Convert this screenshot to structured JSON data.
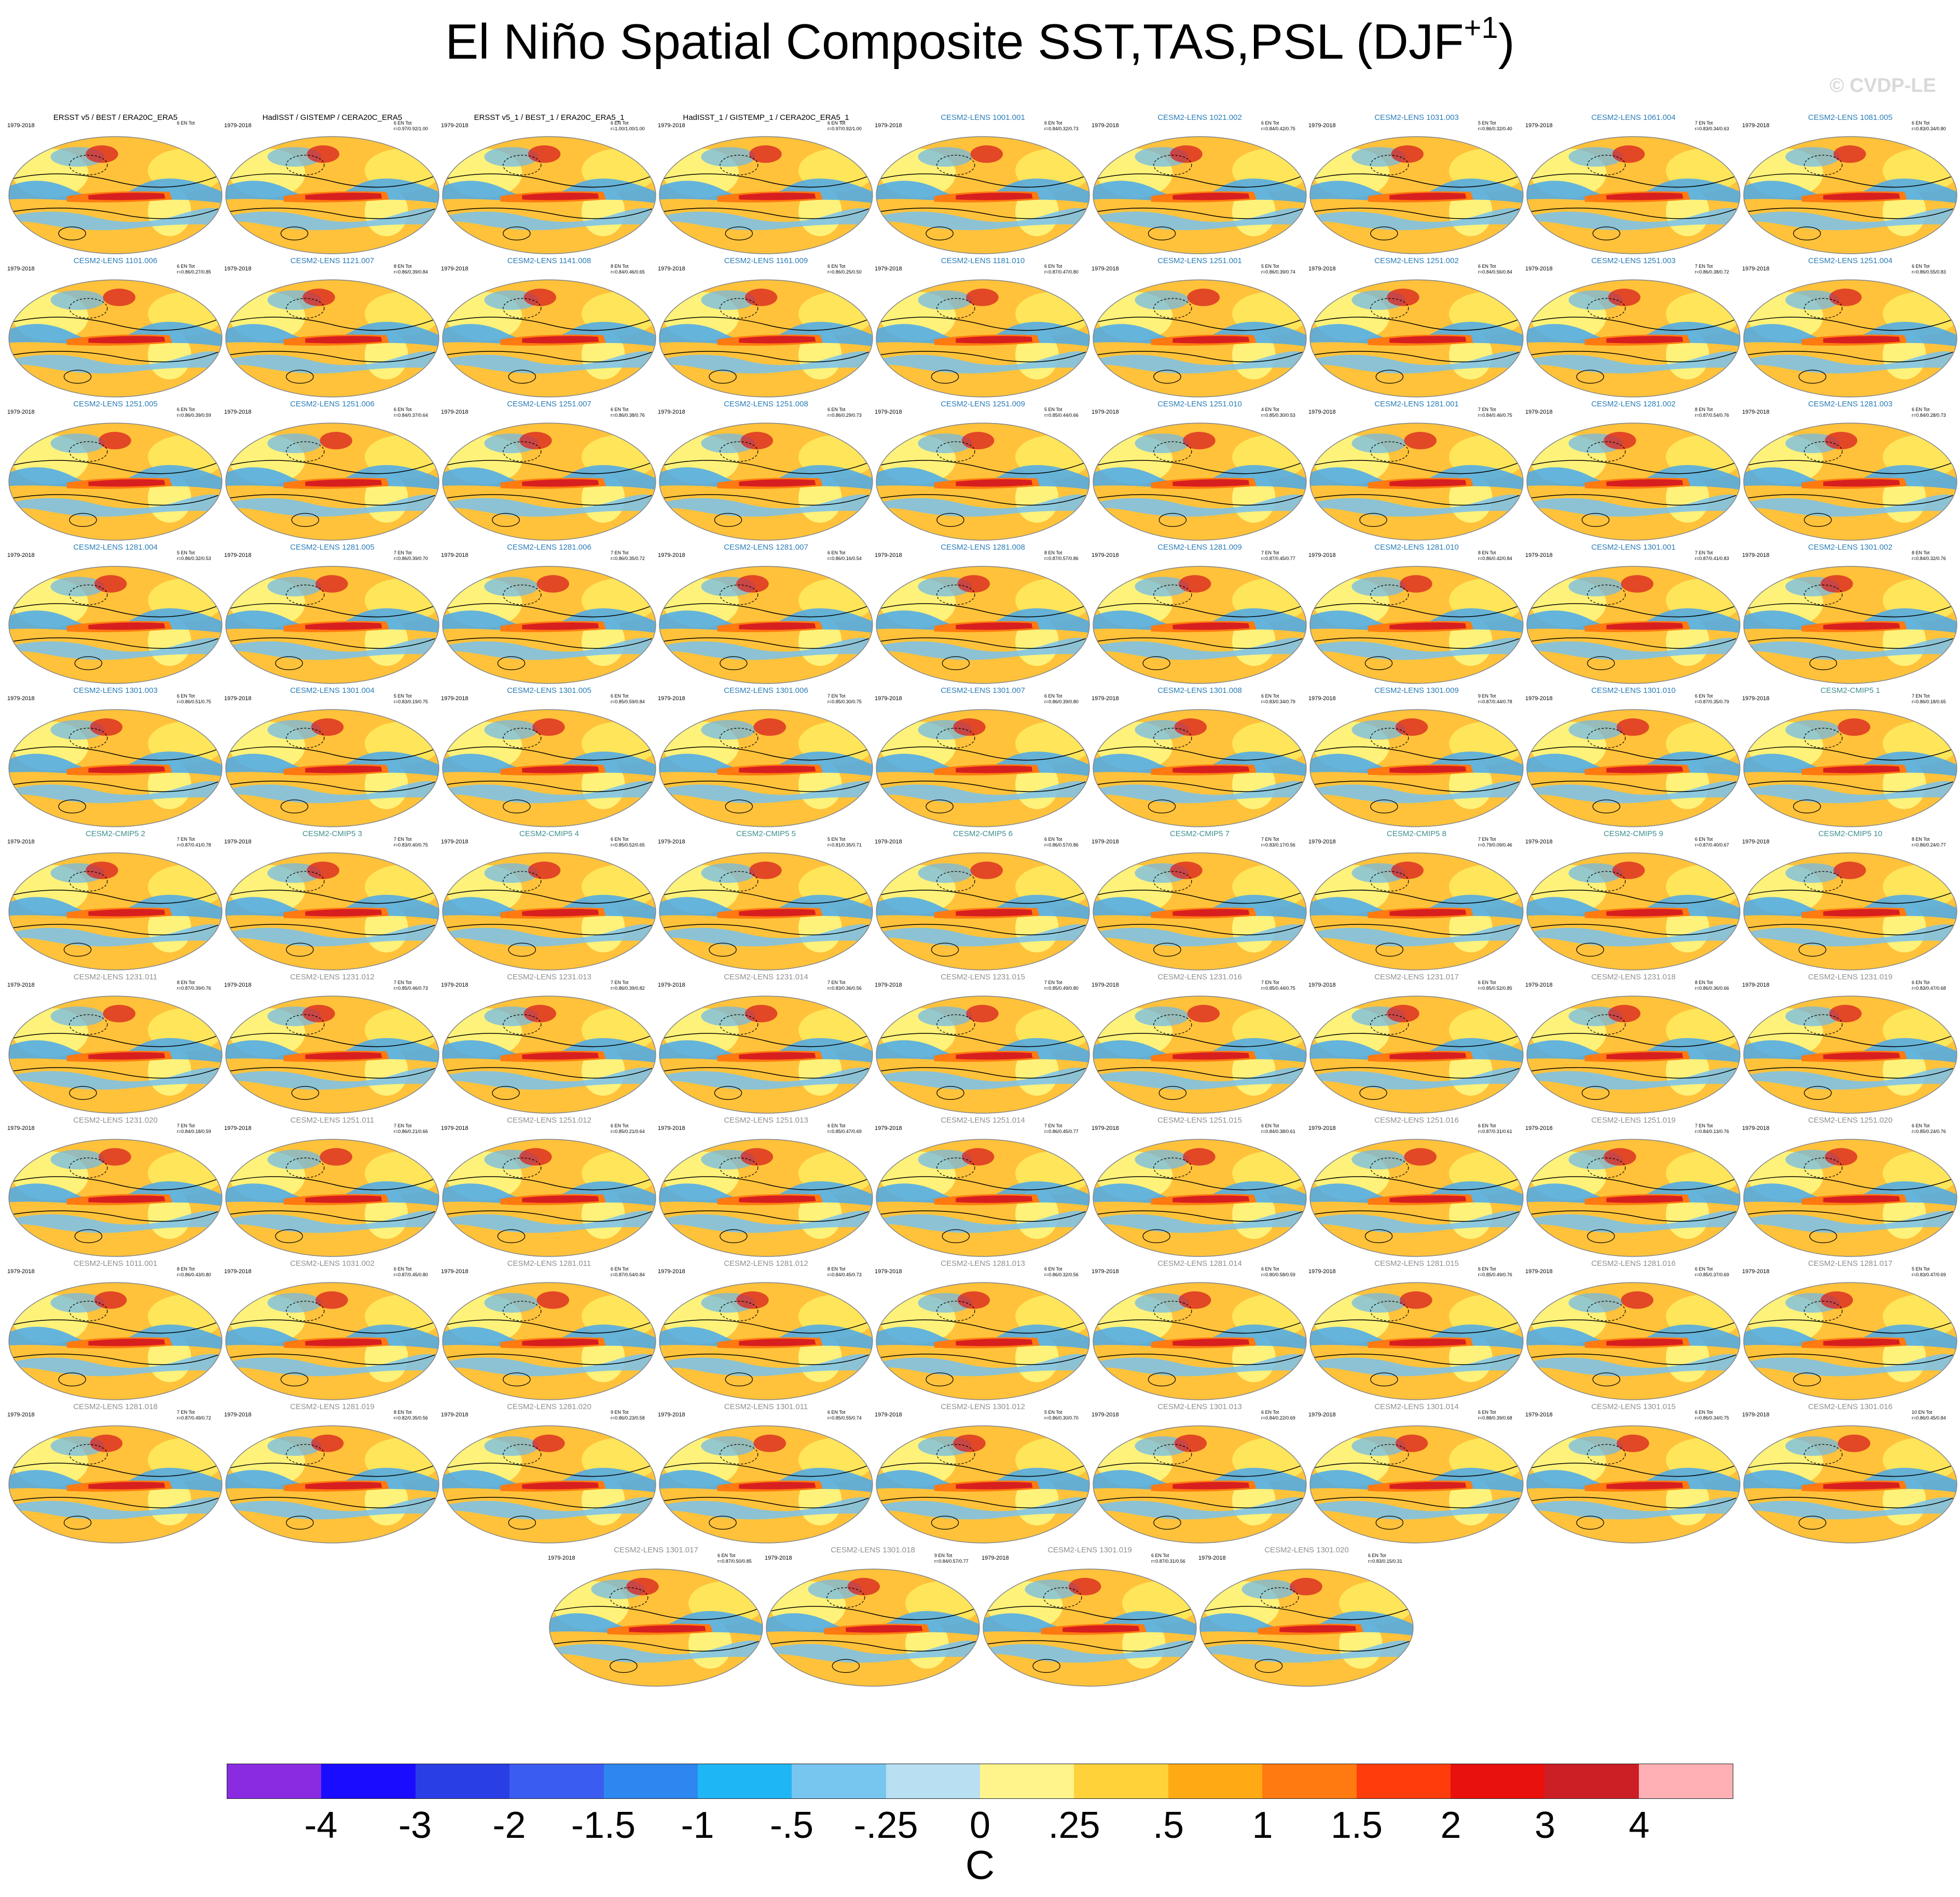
{
  "title": {
    "text": "El Niño Spatial Composite SST,TAS,PSL (DJF",
    "superscript": "+1",
    "close": ")"
  },
  "watermark": "© CVDP-LE",
  "colors": {
    "observation_title": "#000000",
    "cesm2_lens_title": "#2a7db8",
    "cesm2_cmip5_title": "#3f8f8f",
    "late_member_title": "#8f8f8f",
    "ocean_red": "#d81f1f",
    "ocean_blue": "#4aa9ec",
    "land_yellow": "#fff27a",
    "land_orange": "#ffb52a"
  },
  "panels": [
    {
      "title": "ERSST v5 / BEST / ERA20C_ERA5",
      "group": "obs",
      "period": "1979-2018",
      "stats": "6 EN Tot"
    },
    {
      "title": "HadISST / GISTEMP / CERA20C_ERA5",
      "group": "obs",
      "period": "1979-2018",
      "stats": "6 EN Tot\nr=0.97/0.92/1.00"
    },
    {
      "title": "ERSST v5_1 / BEST_1 / ERA20C_ERA5_1",
      "group": "obs",
      "period": "1979-2018",
      "stats": "6 EN Tot\nr=1.00/1.00/1.00"
    },
    {
      "title": "HadISST_1 / GISTEMP_1 / CERA20C_ERA5_1",
      "group": "obs",
      "period": "1979-2018",
      "stats": "6 EN Tot\nr=0.97/0.92/1.00"
    },
    {
      "title": "CESM2-LENS 1001.001",
      "group": "lens",
      "period": "1979-2018",
      "stats": "6 EN Tot\nr=0.84/0.32/0.73"
    },
    {
      "title": "CESM2-LENS 1021.002",
      "group": "lens",
      "period": "1979-2018",
      "stats": "6 EN Tot\nr=0.84/0.42/0.75"
    },
    {
      "title": "CESM2-LENS 1031.003",
      "group": "lens",
      "period": "1979-2018",
      "stats": "5 EN Tot\nr=0.86/0.32/0.40"
    },
    {
      "title": "CESM2-LENS 1061.004",
      "group": "lens",
      "period": "1979-2018",
      "stats": "7 EN Tot\nr=0.83/0.34/0.63"
    },
    {
      "title": "CESM2-LENS 1081.005",
      "group": "lens",
      "period": "1979-2018",
      "stats": "6 EN Tot\nr=0.83/0.34/0.80"
    },
    {
      "title": "CESM2-LENS 1101.006",
      "group": "lens",
      "period": "1979-2018",
      "stats": "6 EN Tot\nr=0.86/0.27/0.85"
    },
    {
      "title": "CESM2-LENS 1121.007",
      "group": "lens",
      "period": "1979-2018",
      "stats": "8 EN Tot\nr=0.86/0.39/0.84"
    },
    {
      "title": "CESM2-LENS 1141.008",
      "group": "lens",
      "period": "1979-2018",
      "stats": "8 EN Tot\nr=0.84/0.46/0.65"
    },
    {
      "title": "CESM2-LENS 1161.009",
      "group": "lens",
      "period": "1979-2018",
      "stats": "6 EN Tot\nr=0.86/0.25/0.50"
    },
    {
      "title": "CESM2-LENS 1181.010",
      "group": "lens",
      "period": "1979-2018",
      "stats": "6 EN Tot\nr=0.87/0.47/0.80"
    },
    {
      "title": "CESM2-LENS 1251.001",
      "group": "lens",
      "period": "1979-2018",
      "stats": "5 EN Tot\nr=0.86/0.39/0.74"
    },
    {
      "title": "CESM2-LENS 1251.002",
      "group": "lens",
      "period": "1979-2018",
      "stats": "6 EN Tot\nr=0.84/0.56/0.84"
    },
    {
      "title": "CESM2-LENS 1251.003",
      "group": "lens",
      "period": "1979-2018",
      "stats": "7 EN Tot\nr=0.86/0.38/0.72"
    },
    {
      "title": "CESM2-LENS 1251.004",
      "group": "lens",
      "period": "1979-2018",
      "stats": "6 EN Tot\nr=0.86/0.55/0.83"
    },
    {
      "title": "CESM2-LENS 1251.005",
      "group": "lens",
      "period": "1979-2018",
      "stats": "6 EN Tot\nr=0.86/0.39/0.59"
    },
    {
      "title": "CESM2-LENS 1251.006",
      "group": "lens",
      "period": "1979-2018",
      "stats": "6 EN Tot\nr=0.84/0.37/0.64"
    },
    {
      "title": "CESM2-LENS 1251.007",
      "group": "lens",
      "period": "1979-2018",
      "stats": "6 EN Tot\nr=0.86/0.38/0.76"
    },
    {
      "title": "CESM2-LENS 1251.008",
      "group": "lens",
      "period": "1979-2018",
      "stats": "6 EN Tot\nr=0.86/0.29/0.73"
    },
    {
      "title": "CESM2-LENS 1251.009",
      "group": "lens",
      "period": "1979-2018",
      "stats": "5 EN Tot\nr=0.85/0.44/0.66"
    },
    {
      "title": "CESM2-LENS 1251.010",
      "group": "lens",
      "period": "1979-2018",
      "stats": "4 EN Tot\nr=0.85/0.30/0.53"
    },
    {
      "title": "CESM2-LENS 1281.001",
      "group": "lens",
      "period": "1979-2018",
      "stats": "7 EN Tot\nr=0.84/0.46/0.75"
    },
    {
      "title": "CESM2-LENS 1281.002",
      "group": "lens",
      "period": "1979-2018",
      "stats": "8 EN Tot\nr=0.87/0.54/0.76"
    },
    {
      "title": "CESM2-LENS 1281.003",
      "group": "lens",
      "period": "1979-2018",
      "stats": "6 EN Tot\nr=0.84/0.28/0.73"
    },
    {
      "title": "CESM2-LENS 1281.004",
      "group": "lens",
      "period": "1979-2018",
      "stats": "5 EN Tot\nr=0.86/0.32/0.53"
    },
    {
      "title": "CESM2-LENS 1281.005",
      "group": "lens",
      "period": "1979-2018",
      "stats": "7 EN Tot\nr=0.86/0.39/0.70"
    },
    {
      "title": "CESM2-LENS 1281.006",
      "group": "lens",
      "period": "1979-2018",
      "stats": "7 EN Tot\nr=0.86/0.35/0.72"
    },
    {
      "title": "CESM2-LENS 1281.007",
      "group": "lens",
      "period": "1979-2018",
      "stats": "6 EN Tot\nr=0.86/0.16/0.54"
    },
    {
      "title": "CESM2-LENS 1281.008",
      "group": "lens",
      "period": "1979-2018",
      "stats": "8 EN Tot\nr=0.87/0.57/0.86"
    },
    {
      "title": "CESM2-LENS 1281.009",
      "group": "lens",
      "period": "1979-2018",
      "stats": "7 EN Tot\nr=0.87/0.45/0.77"
    },
    {
      "title": "CESM2-LENS 1281.010",
      "group": "lens",
      "period": "1979-2018",
      "stats": "8 EN Tot\nr=0.86/0.42/0.84"
    },
    {
      "title": "CESM2-LENS 1301.001",
      "group": "lens",
      "period": "1979-2018",
      "stats": "7 EN Tot\nr=0.87/0.41/0.83"
    },
    {
      "title": "CESM2-LENS 1301.002",
      "group": "lens",
      "period": "1979-2018",
      "stats": "8 EN Tot\nr=0.84/0.32/0.76"
    },
    {
      "title": "CESM2-LENS 1301.003",
      "group": "lens",
      "period": "1979-2018",
      "stats": "6 EN Tot\nr=0.86/0.51/0.75"
    },
    {
      "title": "CESM2-LENS 1301.004",
      "group": "lens",
      "period": "1979-2018",
      "stats": "5 EN Tot\nr=0.83/0.19/0.75"
    },
    {
      "title": "CESM2-LENS 1301.005",
      "group": "lens",
      "period": "1979-2018",
      "stats": "6 EN Tot\nr=0.85/0.59/0.84"
    },
    {
      "title": "CESM2-LENS 1301.006",
      "group": "lens",
      "period": "1979-2018",
      "stats": "7 EN Tot\nr=0.85/0.30/0.75"
    },
    {
      "title": "CESM2-LENS 1301.007",
      "group": "lens",
      "period": "1979-2018",
      "stats": "6 EN Tot\nr=0.86/0.39/0.80"
    },
    {
      "title": "CESM2-LENS 1301.008",
      "group": "lens",
      "period": "1979-2018",
      "stats": "6 EN Tot\nr=0.83/0.34/0.79"
    },
    {
      "title": "CESM2-LENS 1301.009",
      "group": "lens",
      "period": "1979-2018",
      "stats": "9 EN Tot\nr=0.87/0.44/0.78"
    },
    {
      "title": "CESM2-LENS 1301.010",
      "group": "lens",
      "period": "1979-2018",
      "stats": "6 EN Tot\nr=0.87/0.35/0.79"
    },
    {
      "title": "CESM2-CMIP5 1",
      "group": "cmip5",
      "period": "1979-2018",
      "stats": "7 EN Tot\nr=0.86/0.18/0.65"
    },
    {
      "title": "CESM2-CMIP5 2",
      "group": "cmip5",
      "period": "1979-2018",
      "stats": "7 EN Tot\nr=0.87/0.41/0.78"
    },
    {
      "title": "CESM2-CMIP5 3",
      "group": "cmip5",
      "period": "1979-2018",
      "stats": "7 EN Tot\nr=0.83/0.40/0.75"
    },
    {
      "title": "CESM2-CMIP5 4",
      "group": "cmip5",
      "period": "1979-2018",
      "stats": "6 EN Tot\nr=0.85/0.52/0.65"
    },
    {
      "title": "CESM2-CMIP5 5",
      "group": "cmip5",
      "period": "1979-2018",
      "stats": "5 EN Tot\nr=0.81/0.35/0.71"
    },
    {
      "title": "CESM2-CMIP5 6",
      "group": "cmip5",
      "period": "1979-2018",
      "stats": "6 EN Tot\nr=0.86/0.57/0.86"
    },
    {
      "title": "CESM2-CMIP5 7",
      "group": "cmip5",
      "period": "1979-2018",
      "stats": "7 EN Tot\nr=0.83/0.17/0.56"
    },
    {
      "title": "CESM2-CMIP5 8",
      "group": "cmip5",
      "period": "1979-2018",
      "stats": "7 EN Tot\nr=0.79/0.09/0.46"
    },
    {
      "title": "CESM2-CMIP5 9",
      "group": "cmip5",
      "period": "1979-2018",
      "stats": "6 EN Tot\nr=0.87/0.40/0.67"
    },
    {
      "title": "CESM2-CMIP5 10",
      "group": "cmip5",
      "period": "1979-2018",
      "stats": "8 EN Tot\nr=0.86/0.24/0.77"
    },
    {
      "title": "CESM2-LENS 1231.011",
      "group": "late",
      "period": "1979-2018",
      "stats": "8 EN Tot\nr=0.87/0.39/0.76"
    },
    {
      "title": "CESM2-LENS 1231.012",
      "group": "late",
      "period": "1979-2018",
      "stats": "7 EN Tot\nr=0.85/0.46/0.73"
    },
    {
      "title": "CESM2-LENS 1231.013",
      "group": "late",
      "period": "1979-2018",
      "stats": "7 EN Tot\nr=0.86/0.39/0.82"
    },
    {
      "title": "CESM2-LENS 1231.014",
      "group": "late",
      "period": "1979-2018",
      "stats": "7 EN Tot\nr=0.83/0.36/0.56"
    },
    {
      "title": "CESM2-LENS 1231.015",
      "group": "late",
      "period": "1979-2018",
      "stats": "7 EN Tot\nr=0.85/0.49/0.80"
    },
    {
      "title": "CESM2-LENS 1231.016",
      "group": "late",
      "period": "1979-2018",
      "stats": "7 EN Tot\nr=0.85/0.44/0.75"
    },
    {
      "title": "CESM2-LENS 1231.017",
      "group": "late",
      "period": "1979-2018",
      "stats": "6 EN Tot\nr=0.85/0.52/0.85"
    },
    {
      "title": "CESM2-LENS 1231.018",
      "group": "late",
      "period": "1979-2018",
      "stats": "8 EN Tot\nr=0.86/0.36/0.66"
    },
    {
      "title": "CESM2-LENS 1231.019",
      "group": "late",
      "period": "1979-2018",
      "stats": "6 EN Tot\nr=0.83/0.47/0.68"
    },
    {
      "title": "CESM2-LENS 1231.020",
      "group": "late",
      "period": "1979-2018",
      "stats": "7 EN Tot\nr=0.84/0.18/0.59"
    },
    {
      "title": "CESM2-LENS 1251.011",
      "group": "late",
      "period": "1979-2018",
      "stats": "7 EN Tot\nr=0.86/0.21/0.66"
    },
    {
      "title": "CESM2-LENS 1251.012",
      "group": "late",
      "period": "1979-2018",
      "stats": "6 EN Tot\nr=0.85/0.21/0.64"
    },
    {
      "title": "CESM2-LENS 1251.013",
      "group": "late",
      "period": "1979-2018",
      "stats": "6 EN Tot\nr=0.85/0.47/0.69"
    },
    {
      "title": "CESM2-LENS 1251.014",
      "group": "late",
      "period": "1979-2018",
      "stats": "7 EN Tot\nr=0.86/0.45/0.77"
    },
    {
      "title": "CESM2-LENS 1251.015",
      "group": "late",
      "period": "1979-2018",
      "stats": "6 EN Tot\nr=0.84/0.38/0.61"
    },
    {
      "title": "CESM2-LENS 1251.016",
      "group": "late",
      "period": "1979-2018",
      "stats": "6 EN Tot\nr=0.87/0.31/0.61"
    },
    {
      "title": "CESM2-LENS 1251.019",
      "group": "late",
      "period": "1979-2018",
      "stats": "7 EN Tot\nr=0.84/0.13/0.76"
    },
    {
      "title": "CESM2-LENS 1251.020",
      "group": "late",
      "period": "1979-2018",
      "stats": "6 EN Tot\nr=0.85/0.24/0.76"
    },
    {
      "title": "CESM2-LENS 1011.001",
      "group": "late",
      "period": "1979-2018",
      "stats": "8 EN Tot\nr=0.86/0.43/0.80"
    },
    {
      "title": "CESM2-LENS 1031.002",
      "group": "late",
      "period": "1979-2018",
      "stats": "6 EN Tot\nr=0.87/0.45/0.80"
    },
    {
      "title": "CESM2-LENS 1281.011",
      "group": "late",
      "period": "1979-2018",
      "stats": "6 EN Tot\nr=0.87/0.54/0.84"
    },
    {
      "title": "CESM2-LENS 1281.012",
      "group": "late",
      "period": "1979-2018",
      "stats": "8 EN Tot\nr=0.84/0.45/0.73"
    },
    {
      "title": "CESM2-LENS 1281.013",
      "group": "late",
      "period": "1979-2018",
      "stats": "6 EN Tot\nr=0.86/0.32/0.56"
    },
    {
      "title": "CESM2-LENS 1281.014",
      "group": "late",
      "period": "1979-2018",
      "stats": "6 EN Tot\nr=0.80/0.58/0.59"
    },
    {
      "title": "CESM2-LENS 1281.015",
      "group": "late",
      "period": "1979-2018",
      "stats": "6 EN Tot\nr=0.85/0.49/0.76"
    },
    {
      "title": "CESM2-LENS 1281.016",
      "group": "late",
      "period": "1979-2018",
      "stats": "6 EN Tot\nr=0.85/0.37/0.69"
    },
    {
      "title": "CESM2-LENS 1281.017",
      "group": "late",
      "period": "1979-2018",
      "stats": "5 EN Tot\nr=0.83/0.47/0.69"
    },
    {
      "title": "CESM2-LENS 1281.018",
      "group": "late",
      "period": "1979-2018",
      "stats": "7 EN Tot\nr=0.87/0.49/0.72"
    },
    {
      "title": "CESM2-LENS 1281.019",
      "group": "late",
      "period": "1979-2018",
      "stats": "8 EN Tot\nr=0.82/0.35/0.56"
    },
    {
      "title": "CESM2-LENS 1281.020",
      "group": "late",
      "period": "1979-2018",
      "stats": "9 EN Tot\nr=0.86/0.23/0.58"
    },
    {
      "title": "CESM2-LENS 1301.011",
      "group": "late",
      "period": "1979-2018",
      "stats": "6 EN Tot\nr=0.85/0.55/0.74"
    },
    {
      "title": "CESM2-LENS 1301.012",
      "group": "late",
      "period": "1979-2018",
      "stats": "5 EN Tot\nr=0.86/0.30/0.70"
    },
    {
      "title": "CESM2-LENS 1301.013",
      "group": "late",
      "period": "1979-2018",
      "stats": "6 EN Tot\nr=0.84/0.22/0.69"
    },
    {
      "title": "CESM2-LENS 1301.014",
      "group": "late",
      "period": "1979-2018",
      "stats": "6 EN Tot\nr=0.88/0.39/0.68"
    },
    {
      "title": "CESM2-LENS 1301.015",
      "group": "late",
      "period": "1979-2018",
      "stats": "6 EN Tot\nr=0.86/0.34/0.75"
    },
    {
      "title": "CESM2-LENS 1301.016",
      "group": "late",
      "period": "1979-2018",
      "stats": "10 EN Tot\nr=0.86/0.45/0.84"
    },
    {
      "title": "CESM2-LENS 1301.017",
      "group": "late",
      "period": "1979-2018",
      "stats": "6 EN Tot\nr=0.87/0.50/0.85"
    },
    {
      "title": "CESM2-LENS 1301.018",
      "group": "late",
      "period": "1979-2018",
      "stats": "9 EN Tot\nr=0.84/0.57/0.77"
    },
    {
      "title": "CESM2-LENS 1301.019",
      "group": "late",
      "period": "1979-2018",
      "stats": "6 EN Tot\nr=0.87/0.31/0.56"
    },
    {
      "title": "CESM2-LENS 1301.020",
      "group": "late",
      "period": "1979-2018",
      "stats": "6 EN Tot\nr=0.83/0.15/0.31"
    }
  ],
  "colorbar": {
    "colors": [
      "#8a2be2",
      "#1a0dff",
      "#2a3ee6",
      "#3b5cf0",
      "#2e86f0",
      "#1fb6f5",
      "#76c6f0",
      "#b9dff2",
      "#fff48c",
      "#ffd23a",
      "#ffaa14",
      "#ff7a10",
      "#ff3c0c",
      "#e8110d",
      "#cc1e25",
      "#ffb0b4"
    ],
    "labels": [
      "-4",
      "-3",
      "-2",
      "-1.5",
      "-1",
      "-.5",
      "-.25",
      "0",
      ".25",
      ".5",
      "1",
      "1.5",
      "2",
      "3",
      "4"
    ],
    "unit": "C"
  }
}
